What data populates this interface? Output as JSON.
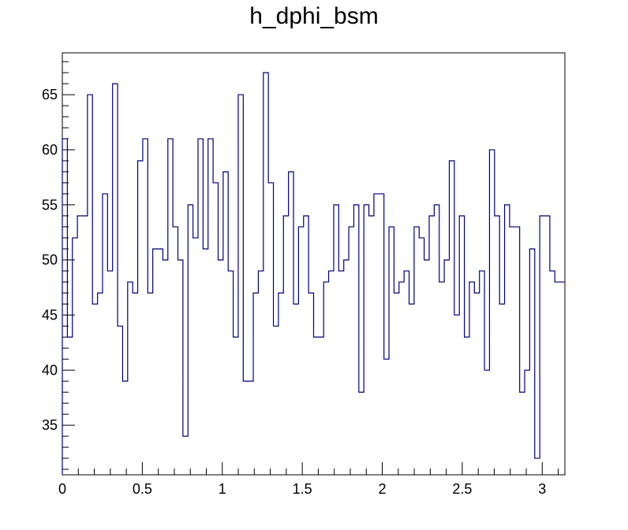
{
  "chart_data": {
    "type": "histogram",
    "title": "h_dphi_bsm",
    "xlabel": "",
    "ylabel": "",
    "xlim": [
      0,
      3.1416
    ],
    "ylim": [
      30.5,
      68.8
    ],
    "bin_count": 100,
    "values": [
      61,
      43,
      52,
      54,
      54,
      65,
      46,
      47,
      56,
      49,
      66,
      44,
      39,
      48,
      47,
      59,
      61,
      47,
      51,
      51,
      50,
      61,
      53,
      50,
      34,
      55,
      52,
      61,
      51,
      61,
      57,
      50,
      58,
      49,
      43,
      65,
      39,
      39,
      47,
      49,
      67,
      57,
      44,
      47,
      54,
      58,
      46,
      53,
      54,
      47,
      43,
      43,
      48,
      49,
      55,
      49,
      50,
      53,
      55,
      38,
      55,
      54,
      56,
      56,
      41,
      53,
      47,
      48,
      49,
      46,
      53,
      52,
      50,
      54,
      55,
      48,
      50,
      59,
      45,
      54,
      43,
      48,
      47,
      49,
      40,
      60,
      54,
      46,
      55,
      53,
      53,
      38,
      40,
      51,
      32,
      54,
      54,
      49,
      48,
      48
    ],
    "x_ticks": [
      "0",
      "0.5",
      "1",
      "1.5",
      "2",
      "2.5",
      "3"
    ],
    "x_tick_values": [
      0,
      0.5,
      1,
      1.5,
      2,
      2.5,
      3
    ],
    "y_ticks": [
      "35",
      "40",
      "45",
      "50",
      "55",
      "60",
      "65"
    ],
    "y_tick_values": [
      35,
      40,
      45,
      50,
      55,
      60,
      65
    ],
    "grid": false,
    "line_color": "#000080"
  }
}
